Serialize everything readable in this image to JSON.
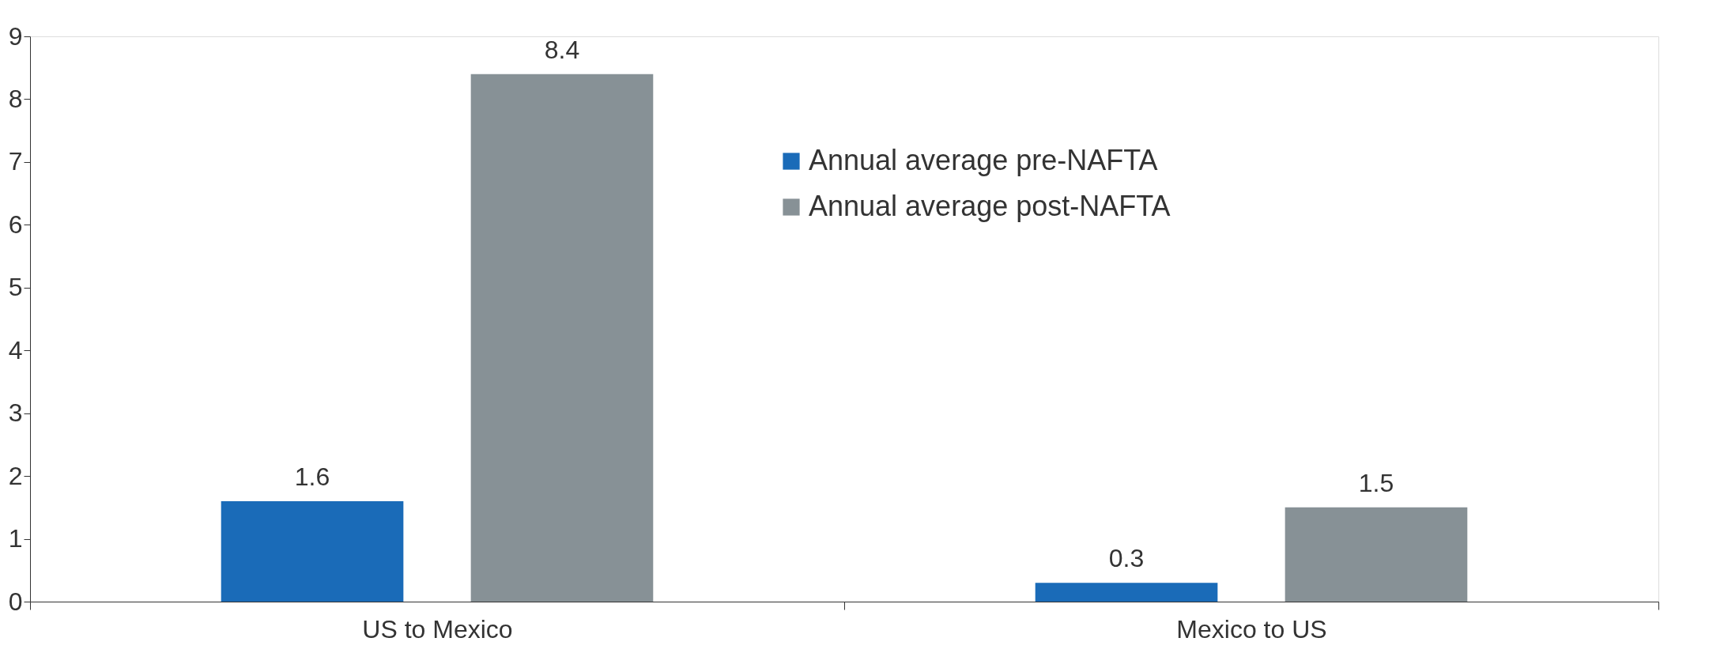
{
  "chart_data": {
    "type": "bar",
    "categories": [
      "US to Mexico",
      "Mexico to US"
    ],
    "series": [
      {
        "name": "Annual average pre-NAFTA",
        "color": "#1a6bb8",
        "values": [
          1.6,
          0.3
        ]
      },
      {
        "name": "Annual average post-NAFTA",
        "color": "#879196",
        "values": [
          8.4,
          1.5
        ]
      }
    ],
    "ylim": [
      0,
      9
    ],
    "yticks": [
      0,
      1,
      2,
      3,
      4,
      5,
      6,
      7,
      8,
      9
    ],
    "data_labels": true,
    "grid": false,
    "legend": "top"
  }
}
